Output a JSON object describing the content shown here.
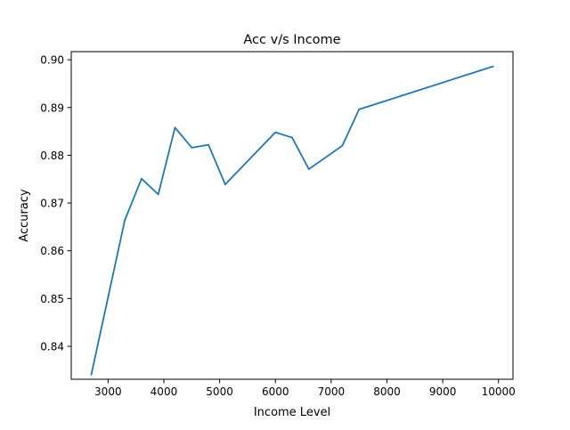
{
  "chart_data": {
    "type": "line",
    "title": "Acc v/s Income",
    "xlabel": "Income Level",
    "ylabel": "Accuracy",
    "xlim": [
      2340,
      10260
    ],
    "ylim": [
      0.8331,
      0.9017
    ],
    "x_ticks": [
      3000,
      4000,
      5000,
      6000,
      7000,
      8000,
      9000,
      10000
    ],
    "y_ticks": [
      0.84,
      0.85,
      0.86,
      0.87,
      0.88,
      0.89,
      0.9
    ],
    "x_tick_labels": [
      "3000",
      "4000",
      "5000",
      "6000",
      "7000",
      "8000",
      "9000",
      "10000"
    ],
    "y_tick_labels": [
      "0.84",
      "0.85",
      "0.86",
      "0.87",
      "0.88",
      "0.89",
      "0.90"
    ],
    "grid": false,
    "series": [
      {
        "color": "#1f77b4",
        "x": [
          2700,
          3300,
          3600,
          3900,
          4200,
          4500,
          4800,
          5100,
          6000,
          6300,
          6600,
          7200,
          7500,
          9900
        ],
        "y": [
          0.8341,
          0.8664,
          0.8751,
          0.8718,
          0.8858,
          0.8816,
          0.8822,
          0.8739,
          0.8848,
          0.8837,
          0.8771,
          0.882,
          0.8896,
          0.8986
        ]
      }
    ]
  }
}
